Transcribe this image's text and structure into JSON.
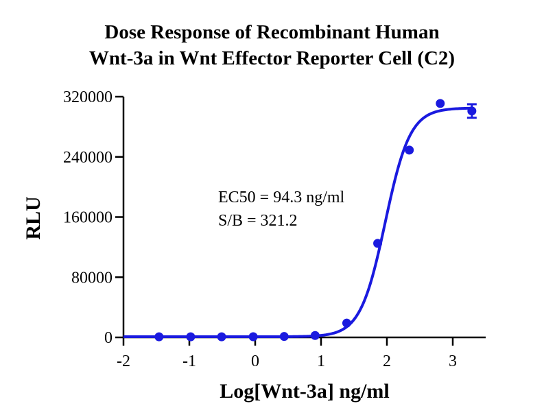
{
  "chart_data": {
    "type": "scatter",
    "title_line1": "Dose Response of Recombinant Human",
    "title_line2": "Wnt-3a in Wnt Effector Reporter Cell (C2)",
    "xlabel": "Log[Wnt-3a] ng/ml",
    "ylabel": "RLU",
    "xlim": [
      -2,
      3.5
    ],
    "ylim": [
      0,
      320000
    ],
    "x_ticks": [
      "-2",
      "-1",
      "0",
      "1",
      "2",
      "3"
    ],
    "x_tick_values": [
      -2,
      -1,
      0,
      1,
      2,
      3
    ],
    "y_ticks": [
      "0",
      "80000",
      "160000",
      "240000",
      "320000"
    ],
    "y_tick_values": [
      0,
      80000,
      160000,
      240000,
      320000
    ],
    "color": "#1a1adf",
    "series": [
      {
        "x": [
          -1.46,
          -0.98,
          -0.51,
          -0.03,
          0.44,
          0.91,
          1.39,
          1.86,
          2.34,
          2.81,
          3.29
        ],
        "y": [
          800,
          800,
          800,
          900,
          1200,
          2500,
          19000,
          125000,
          249000,
          311000,
          301000
        ],
        "error": [
          0,
          0,
          0,
          0,
          0,
          0,
          0,
          0,
          0,
          0,
          9000
        ]
      }
    ],
    "fit": {
      "bottom": 900,
      "top": 305000,
      "log_ec50": 1.9745,
      "hill": 2.3
    },
    "annotation_line1": "EC50 = 94.3 ng/ml",
    "annotation_line2": "S/B  = 321.2",
    "grid": false
  }
}
